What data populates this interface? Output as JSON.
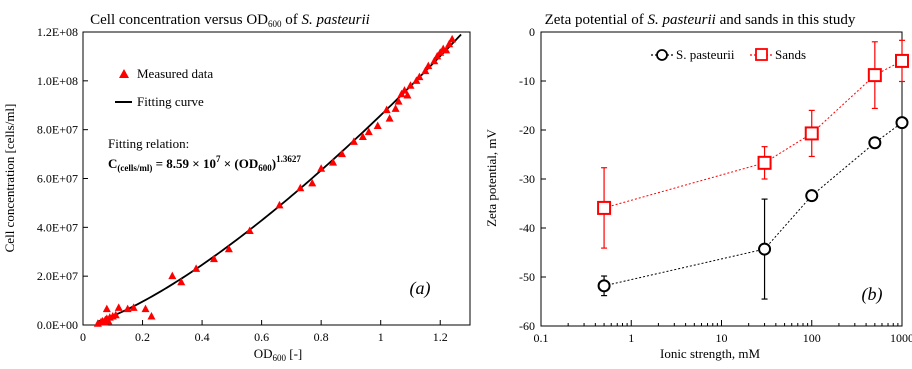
{
  "chart_data": [
    {
      "type": "scatter",
      "title_main": "Cell concentration versus OD",
      "title_sub": "600",
      "title_of": " of ",
      "title_species": "S. pasteurii",
      "xlabel_main": "OD",
      "xlabel_sub": "600",
      "xlabel_unit": " [-]",
      "ylabel": "Cell concentration  [cells/ml]",
      "xlim": [
        0,
        1.3
      ],
      "ylim": [
        0,
        120000000
      ],
      "x_ticks": [
        "0",
        "0.2",
        "0.4",
        "0.6",
        "0.8",
        "1",
        "1.2"
      ],
      "y_ticks": [
        "0.0E+00",
        "2.0E+07",
        "4.0E+07",
        "6.0E+07",
        "8.0E+07",
        "1.0E+08",
        "1.2E+08"
      ],
      "grid": false,
      "legend_placement": "top-left",
      "panel_label": "(a)",
      "series": [
        {
          "name": "Measured data",
          "marker": "triangle",
          "color": "#ff0000",
          "x": [
            0.05,
            0.06,
            0.065,
            0.07,
            0.075,
            0.08,
            0.085,
            0.09,
            0.1,
            0.11,
            0.12,
            0.15,
            0.17,
            0.21,
            0.23,
            0.3,
            0.33,
            0.38,
            0.44,
            0.49,
            0.56,
            0.66,
            0.73,
            0.77,
            0.8,
            0.84,
            0.87,
            0.91,
            0.94,
            0.96,
            0.99,
            1.02,
            1.03,
            1.05,
            1.06,
            1.07,
            1.08,
            1.09,
            1.1,
            1.12,
            1.13,
            1.15,
            1.16,
            1.18,
            1.19,
            1.2,
            1.21,
            1.22,
            1.23,
            1.24,
            0.08
          ],
          "y": [
            500000,
            1000000,
            1500000,
            1000000,
            2000000,
            2500000,
            1500000,
            3000000,
            3500000,
            4000000,
            7000000,
            6500000,
            7000000,
            6500000,
            3500000,
            20000000,
            17500000,
            23000000,
            27000000,
            31000000,
            38500000,
            49000000,
            56000000,
            58000000,
            64000000,
            66500000,
            70000000,
            75000000,
            77000000,
            79000000,
            81500000,
            88000000,
            84500000,
            88500000,
            91500000,
            94500000,
            96000000,
            94000000,
            98000000,
            100000000,
            101500000,
            104000000,
            106000000,
            108000000,
            110000000,
            111500000,
            113000000,
            112500000,
            115000000,
            117000000,
            6500000
          ]
        },
        {
          "name": "Fitting curve",
          "type": "line",
          "color": "#000000",
          "coefficient": 85900000,
          "exponent": 1.3627,
          "x_range": [
            0.05,
            1.27
          ]
        }
      ],
      "annotation": {
        "line1": "Fitting relation:",
        "c": "C",
        "c_sub": "(cells/ml)",
        "eq_mid": " = 8.59 × 10",
        "exp7": "7",
        "eq_times": " × (OD",
        "od_sub": "600",
        "eq_close": ")",
        "exp_power": "1.3627"
      }
    },
    {
      "type": "line",
      "title_main": "Zeta potential of ",
      "title_species": "S. pasteurii",
      "title_rest": " and sands in this study",
      "xlabel": "Ionic strength, mM",
      "ylabel": "Zeta potential, mV",
      "xscale": "log",
      "xlim": [
        0.1,
        1000
      ],
      "ylim": [
        -60,
        0
      ],
      "x_ticks": [
        "0.1",
        "1",
        "10",
        "100",
        "1000"
      ],
      "y_ticks": [
        "0",
        "-10",
        "-20",
        "-30",
        "-40",
        "-50",
        "-60"
      ],
      "grid": false,
      "legend_placement": "top-center",
      "panel_label": "(b)",
      "series": [
        {
          "name": "S. pasteurii",
          "marker": "circle",
          "color": "#000000",
          "x": [
            0.5,
            30,
            100,
            500,
            1000
          ],
          "y": [
            -51.8,
            -44.3,
            -33.4,
            -22.6,
            -18.5
          ],
          "err": [
            2,
            10.2,
            0.8,
            0.8,
            1
          ]
        },
        {
          "name": "Sands",
          "marker": "square",
          "color": "#ff0000",
          "x": [
            0.5,
            30,
            100,
            500,
            1000
          ],
          "y": [
            -35.9,
            -26.7,
            -20.7,
            -8.8,
            -5.9
          ],
          "err": [
            8.2,
            3.3,
            4.7,
            6.8,
            4.2
          ]
        }
      ]
    }
  ]
}
